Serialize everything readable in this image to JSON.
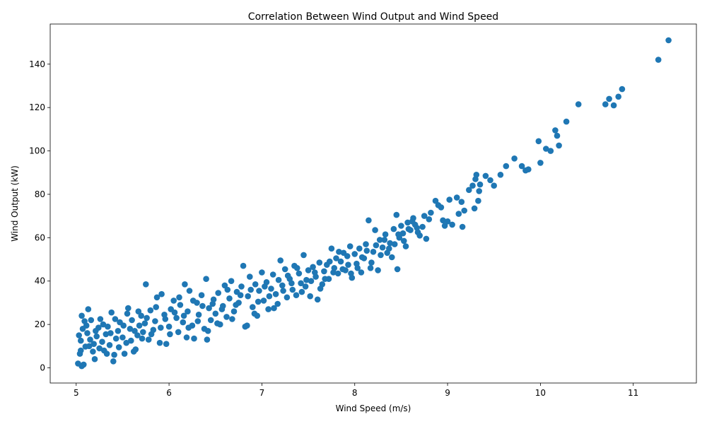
{
  "chart_data": {
    "type": "scatter",
    "title": "Correlation Between Wind Output and Wind Speed",
    "xlabel": "Wind Speed (m/s)",
    "ylabel": "Wind Output (kW)",
    "xlim": [
      4.72,
      11.68
    ],
    "ylim": [
      -7.0,
      158.5
    ],
    "xticks": [
      5,
      6,
      7,
      8,
      9,
      10,
      11
    ],
    "yticks": [
      0,
      20,
      40,
      60,
      80,
      100,
      120,
      140
    ],
    "grid": false,
    "point_color": "#1f77b4",
    "series": [
      {
        "points": [
          [
            5.02,
            2.0
          ],
          [
            5.06,
            0.8
          ],
          [
            5.08,
            1.5
          ],
          [
            5.04,
            6.5
          ],
          [
            5.1,
            9.8
          ],
          [
            5.05,
            12.5
          ],
          [
            5.03,
            15.0
          ],
          [
            5.07,
            18.0
          ],
          [
            5.09,
            21.5
          ],
          [
            5.06,
            24.0
          ],
          [
            5.13,
            27.0
          ],
          [
            5.12,
            16.0
          ],
          [
            5.15,
            13.0
          ],
          [
            5.14,
            10.0
          ],
          [
            5.18,
            7.5
          ],
          [
            5.2,
            4.0
          ],
          [
            5.19,
            11.0
          ],
          [
            5.22,
            14.5
          ],
          [
            5.24,
            18.5
          ],
          [
            5.26,
            22.5
          ],
          [
            5.28,
            12.0
          ],
          [
            5.3,
            8.0
          ],
          [
            5.32,
            15.5
          ],
          [
            5.34,
            19.0
          ],
          [
            5.36,
            10.5
          ],
          [
            5.38,
            25.5
          ],
          [
            5.4,
            3.0
          ],
          [
            5.41,
            6.0
          ],
          [
            5.43,
            13.5
          ],
          [
            5.45,
            17.0
          ],
          [
            5.47,
            21.0
          ],
          [
            5.5,
            14.0
          ],
          [
            5.52,
            6.5
          ],
          [
            5.54,
            11.5
          ],
          [
            5.56,
            27.5
          ],
          [
            5.58,
            18.0
          ],
          [
            5.6,
            22.0
          ],
          [
            5.62,
            7.5
          ],
          [
            5.64,
            8.5
          ],
          [
            5.66,
            15.0
          ],
          [
            5.68,
            19.5
          ],
          [
            5.7,
            24.0
          ],
          [
            5.72,
            16.5
          ],
          [
            5.74,
            20.5
          ],
          [
            5.75,
            38.5
          ],
          [
            5.78,
            13.0
          ],
          [
            5.8,
            26.5
          ],
          [
            5.83,
            17.5
          ],
          [
            5.85,
            21.5
          ],
          [
            5.87,
            32.5
          ],
          [
            5.9,
            11.5
          ],
          [
            5.92,
            34.0
          ],
          [
            5.95,
            24.5
          ],
          [
            5.97,
            11.0
          ],
          [
            6.0,
            19.0
          ],
          [
            6.02,
            27.0
          ],
          [
            6.05,
            31.0
          ],
          [
            6.08,
            23.0
          ],
          [
            6.1,
            16.5
          ],
          [
            6.12,
            29.0
          ],
          [
            6.15,
            21.0
          ],
          [
            6.17,
            38.5
          ],
          [
            6.19,
            14.0
          ],
          [
            6.2,
            26.0
          ],
          [
            6.22,
            35.5
          ],
          [
            6.25,
            19.5
          ],
          [
            6.27,
            13.5
          ],
          [
            6.3,
            30.0
          ],
          [
            6.32,
            24.5
          ],
          [
            6.35,
            33.5
          ],
          [
            6.38,
            18.0
          ],
          [
            6.4,
            41.0
          ],
          [
            6.41,
            13.0
          ],
          [
            6.43,
            27.5
          ],
          [
            6.45,
            22.0
          ],
          [
            6.48,
            31.5
          ],
          [
            6.5,
            25.0
          ],
          [
            6.53,
            34.5
          ],
          [
            6.55,
            20.0
          ],
          [
            6.58,
            28.5
          ],
          [
            6.6,
            38.0
          ],
          [
            6.62,
            23.5
          ],
          [
            6.65,
            32.0
          ],
          [
            6.67,
            40.0
          ],
          [
            6.7,
            26.0
          ],
          [
            6.73,
            35.0
          ],
          [
            6.75,
            30.0
          ],
          [
            6.78,
            37.5
          ],
          [
            6.8,
            47.0
          ],
          [
            6.82,
            19.0
          ],
          [
            6.85,
            33.0
          ],
          [
            6.87,
            42.0
          ],
          [
            6.9,
            28.0
          ],
          [
            6.93,
            38.5
          ],
          [
            6.95,
            24.0
          ],
          [
            6.97,
            35.5
          ],
          [
            7.0,
            44.0
          ],
          [
            7.02,
            31.0
          ],
          [
            7.05,
            39.5
          ],
          [
            7.07,
            27.0
          ],
          [
            7.1,
            36.5
          ],
          [
            7.12,
            43.0
          ],
          [
            7.15,
            34.0
          ],
          [
            7.17,
            29.5
          ],
          [
            7.2,
            49.5
          ],
          [
            7.22,
            38.0
          ],
          [
            7.25,
            45.5
          ],
          [
            7.27,
            32.5
          ],
          [
            7.3,
            41.0
          ],
          [
            7.33,
            36.0
          ],
          [
            7.35,
            47.0
          ],
          [
            7.37,
            33.5
          ],
          [
            7.4,
            43.5
          ],
          [
            7.42,
            39.0
          ],
          [
            7.45,
            52.0
          ],
          [
            7.47,
            37.5
          ],
          [
            7.5,
            45.0
          ],
          [
            7.52,
            33.0
          ],
          [
            7.55,
            46.5
          ],
          [
            7.58,
            42.0
          ],
          [
            7.6,
            31.5
          ],
          [
            7.62,
            48.5
          ],
          [
            7.65,
            38.5
          ],
          [
            7.67,
            44.5
          ],
          [
            7.7,
            47.5
          ],
          [
            7.72,
            41.0
          ],
          [
            7.75,
            55.0
          ],
          [
            7.78,
            46.0
          ],
          [
            7.8,
            50.5
          ],
          [
            7.82,
            43.5
          ],
          [
            7.85,
            49.0
          ],
          [
            7.88,
            53.0
          ],
          [
            7.9,
            45.0
          ],
          [
            7.93,
            47.5
          ],
          [
            7.95,
            56.0
          ],
          [
            7.97,
            41.5
          ],
          [
            8.0,
            52.5
          ],
          [
            8.02,
            48.0
          ],
          [
            8.05,
            55.0
          ],
          [
            8.07,
            44.0
          ],
          [
            8.1,
            50.5
          ],
          [
            8.12,
            57.0
          ],
          [
            8.15,
            68.0
          ],
          [
            8.17,
            46.0
          ],
          [
            8.2,
            53.5
          ],
          [
            8.22,
            63.5
          ],
          [
            8.25,
            45.0
          ],
          [
            8.27,
            59.0
          ],
          [
            8.3,
            55.5
          ],
          [
            8.33,
            61.5
          ],
          [
            8.35,
            53.0
          ],
          [
            8.38,
            57.5
          ],
          [
            8.4,
            51.0
          ],
          [
            8.42,
            64.0
          ],
          [
            8.45,
            70.5
          ],
          [
            8.46,
            45.5
          ],
          [
            8.48,
            60.0
          ],
          [
            8.5,
            65.5
          ],
          [
            8.52,
            62.0
          ],
          [
            8.55,
            56.0
          ],
          [
            8.57,
            67.0
          ],
          [
            8.6,
            63.5
          ],
          [
            8.63,
            69.0
          ],
          [
            8.65,
            66.0
          ],
          [
            8.68,
            62.5
          ],
          [
            8.7,
            61.0
          ],
          [
            8.73,
            65.0
          ],
          [
            8.75,
            70.0
          ],
          [
            8.77,
            59.5
          ],
          [
            8.8,
            68.5
          ],
          [
            8.82,
            71.5
          ],
          [
            8.87,
            77.0
          ],
          [
            8.9,
            75.0
          ],
          [
            8.93,
            74.0
          ],
          [
            8.95,
            68.0
          ],
          [
            8.97,
            65.5
          ],
          [
            9.0,
            67.5
          ],
          [
            9.02,
            77.5
          ],
          [
            9.05,
            66.0
          ],
          [
            9.1,
            78.5
          ],
          [
            9.12,
            71.0
          ],
          [
            9.15,
            76.5
          ],
          [
            9.16,
            65.0
          ],
          [
            9.18,
            72.5
          ],
          [
            9.23,
            82.0
          ],
          [
            9.27,
            84.0
          ],
          [
            9.29,
            73.5
          ],
          [
            9.3,
            87.0
          ],
          [
            9.31,
            89.0
          ],
          [
            9.33,
            77.0
          ],
          [
            9.34,
            81.5
          ],
          [
            9.35,
            84.5
          ],
          [
            9.41,
            88.5
          ],
          [
            9.46,
            86.5
          ],
          [
            9.5,
            84.0
          ],
          [
            9.57,
            89.0
          ],
          [
            9.63,
            93.0
          ],
          [
            9.72,
            96.5
          ],
          [
            9.8,
            93.0
          ],
          [
            9.84,
            91.0
          ],
          [
            9.87,
            91.5
          ],
          [
            9.98,
            104.5
          ],
          [
            10.0,
            94.5
          ],
          [
            10.06,
            101.0
          ],
          [
            10.11,
            100.0
          ],
          [
            10.16,
            109.5
          ],
          [
            10.18,
            107.0
          ],
          [
            10.2,
            102.5
          ],
          [
            10.28,
            113.5
          ],
          [
            10.41,
            121.5
          ],
          [
            10.7,
            121.5
          ],
          [
            10.74,
            124.0
          ],
          [
            10.79,
            121.0
          ],
          [
            10.84,
            125.0
          ],
          [
            10.88,
            128.5
          ],
          [
            11.27,
            142.0
          ],
          [
            11.38,
            151.0
          ],
          [
            5.05,
            8.0
          ],
          [
            5.11,
            19.5
          ],
          [
            5.16,
            22.0
          ],
          [
            5.21,
            17.0
          ],
          [
            5.25,
            9.0
          ],
          [
            5.29,
            20.0
          ],
          [
            5.33,
            6.5
          ],
          [
            5.37,
            16.0
          ],
          [
            5.42,
            22.5
          ],
          [
            5.46,
            9.5
          ],
          [
            5.51,
            19.5
          ],
          [
            5.55,
            25.0
          ],
          [
            5.59,
            12.5
          ],
          [
            5.63,
            17.0
          ],
          [
            5.67,
            26.0
          ],
          [
            5.71,
            13.5
          ],
          [
            5.76,
            23.0
          ],
          [
            5.81,
            15.5
          ],
          [
            5.86,
            28.0
          ],
          [
            5.91,
            18.5
          ],
          [
            5.96,
            22.5
          ],
          [
            6.01,
            15.5
          ],
          [
            6.06,
            25.5
          ],
          [
            6.11,
            32.5
          ],
          [
            6.16,
            24.0
          ],
          [
            6.21,
            18.5
          ],
          [
            6.26,
            31.0
          ],
          [
            6.31,
            21.5
          ],
          [
            6.36,
            28.5
          ],
          [
            6.42,
            17.0
          ],
          [
            6.47,
            29.5
          ],
          [
            6.52,
            20.5
          ],
          [
            6.57,
            27.0
          ],
          [
            6.63,
            36.0
          ],
          [
            6.68,
            22.5
          ],
          [
            6.72,
            29.0
          ],
          [
            6.77,
            33.5
          ],
          [
            6.84,
            19.5
          ],
          [
            6.88,
            36.0
          ],
          [
            6.92,
            25.0
          ],
          [
            6.96,
            30.5
          ],
          [
            7.03,
            37.5
          ],
          [
            7.08,
            33.0
          ],
          [
            7.13,
            27.5
          ],
          [
            7.18,
            40.5
          ],
          [
            7.23,
            35.5
          ],
          [
            7.28,
            42.5
          ],
          [
            7.32,
            39.0
          ],
          [
            7.38,
            46.0
          ],
          [
            7.43,
            35.0
          ],
          [
            7.48,
            40.5
          ],
          [
            7.53,
            40.0
          ],
          [
            7.57,
            44.0
          ],
          [
            7.63,
            36.5
          ],
          [
            7.68,
            41.0
          ],
          [
            7.73,
            49.0
          ],
          [
            7.77,
            44.0
          ],
          [
            7.83,
            53.5
          ],
          [
            7.87,
            45.5
          ],
          [
            7.92,
            51.5
          ],
          [
            7.96,
            43.5
          ],
          [
            8.03,
            46.0
          ],
          [
            8.08,
            51.0
          ],
          [
            8.13,
            54.0
          ],
          [
            8.18,
            48.5
          ],
          [
            8.23,
            56.5
          ],
          [
            8.28,
            52.0
          ],
          [
            8.32,
            59.0
          ],
          [
            8.37,
            55.0
          ],
          [
            8.43,
            57.0
          ],
          [
            8.47,
            61.5
          ],
          [
            8.53,
            58.5
          ],
          [
            8.58,
            64.0
          ],
          [
            8.62,
            67.5
          ],
          [
            8.67,
            64.5
          ]
        ]
      }
    ]
  }
}
